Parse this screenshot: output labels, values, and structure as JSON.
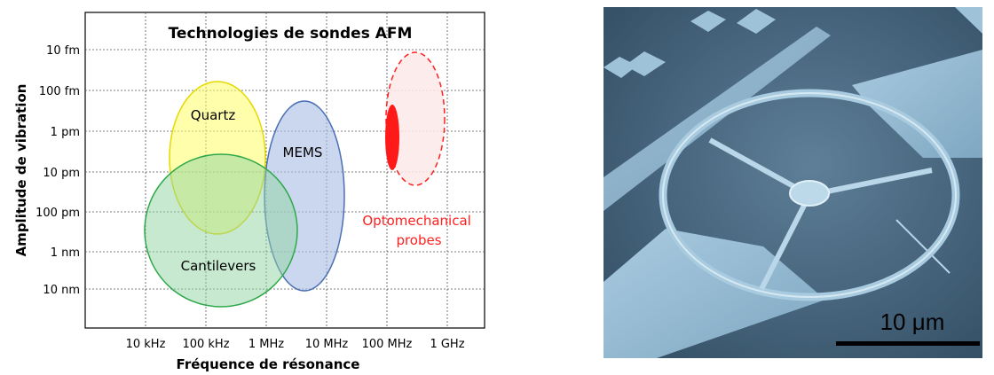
{
  "chart_data": {
    "type": "scatter",
    "title": "Technologies de sondes AFM",
    "xlabel": "Fréquence de résonance",
    "ylabel": "Amplitude de vibration",
    "xscale": "log",
    "x_ticks": [
      "10 kHz",
      "100 kHz",
      "1 MHz",
      "10 MHz",
      "100 MHz",
      "1 GHz"
    ],
    "y_ticks": [
      "10 fm",
      "100 fm",
      "1 pm",
      "10 pm",
      "100 pm",
      "1 nm",
      "10 nm"
    ],
    "grid": true,
    "regions": [
      {
        "name": "Quartz",
        "freq_range": [
          "30 kHz",
          "1 MHz"
        ],
        "amplitude_range": [
          "50 fm",
          "500 pm"
        ],
        "color": "#ffff66",
        "edge": "#e6d800"
      },
      {
        "name": "MEMS",
        "freq_range": [
          "1 MHz",
          "30 MHz"
        ],
        "amplitude_range": [
          "50 fm",
          "20 nm"
        ],
        "color": "#c7d4ec",
        "edge": "#4a6fb5"
      },
      {
        "name": "Cantilevers",
        "freq_range": [
          "20 kHz",
          "3 MHz"
        ],
        "amplitude_range": [
          "10 pm",
          "30 nm"
        ],
        "color": "#b7e3c2",
        "edge": "#2ea84a"
      },
      {
        "name": "Optomechanical probes",
        "freq_range": [
          "100 MHz",
          "1 GHz"
        ],
        "amplitude_range": [
          "10 fm",
          "100 pm"
        ],
        "color": "#fde9e9",
        "edge": "#ff2020"
      }
    ],
    "highlight": {
      "freq": "100 MHz",
      "amplitude_range": [
        "300 fm",
        "20 pm"
      ],
      "color": "#ff1a1a"
    }
  },
  "image": {
    "scale_bar_label": "10 μm"
  }
}
